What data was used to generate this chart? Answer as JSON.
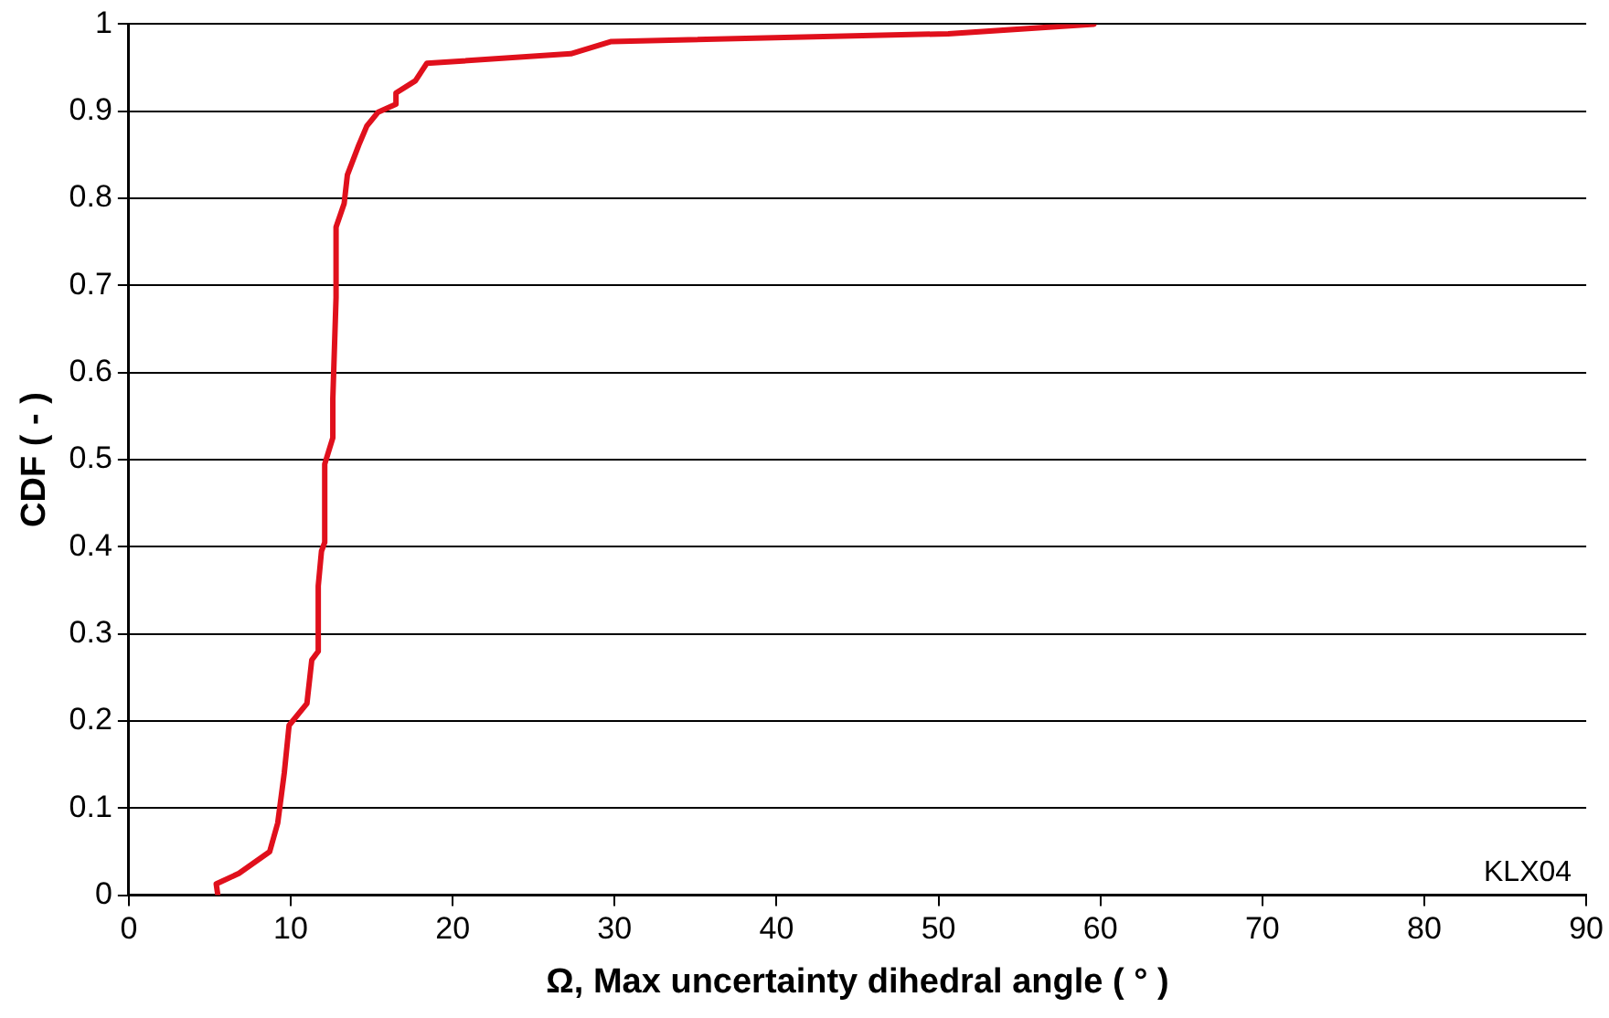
{
  "chart_data": {
    "type": "line",
    "xlabel": "Ω, Max uncertainty dihedral angle ( ° )",
    "ylabel": "CDF ( - )",
    "xlim": [
      0,
      90
    ],
    "xticks": [
      0,
      10,
      20,
      30,
      40,
      50,
      60,
      70,
      80,
      90
    ],
    "ylim": [
      0,
      1
    ],
    "yticks": [
      0,
      0.1,
      0.2,
      0.3,
      0.4,
      0.5,
      0.6,
      0.7,
      0.8,
      0.9,
      1
    ],
    "grid": "y",
    "legend": false,
    "marker": "none",
    "annotations": [
      "KLX04"
    ],
    "series": [
      {
        "color": "#e0101c",
        "x": [
          5.5,
          5.4,
          6.8,
          8.7,
          9.2,
          9.6,
          9.9,
          11.0,
          11.3,
          11.7,
          11.7,
          11.9,
          12.1,
          12.1,
          12.6,
          12.6,
          12.8,
          12.8,
          13.3,
          13.5,
          14.2,
          14.7,
          15.4,
          16.5,
          16.5,
          17.7,
          18.4,
          27.3,
          29.8,
          50.6,
          59.6
        ],
        "values": [
          0,
          0.013,
          0.025,
          0.05,
          0.083,
          0.14,
          0.195,
          0.22,
          0.27,
          0.28,
          0.355,
          0.395,
          0.405,
          0.495,
          0.525,
          0.57,
          0.686,
          0.767,
          0.794,
          0.827,
          0.861,
          0.883,
          0.899,
          0.908,
          0.921,
          0.935,
          0.955,
          0.966,
          0.98,
          0.989,
          1
        ]
      }
    ]
  }
}
